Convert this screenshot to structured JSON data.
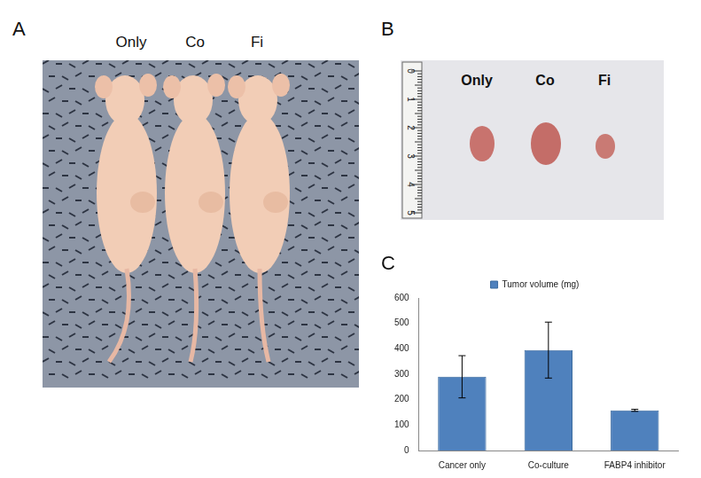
{
  "panels": [
    {
      "label": "A",
      "captions": [
        "Only",
        "Co",
        "Fi"
      ]
    },
    {
      "label": "B",
      "captions": [
        "Only",
        "Co",
        "Fi"
      ],
      "ruler": [
        0,
        1,
        2,
        3,
        4,
        5
      ]
    },
    {
      "label": "C"
    }
  ],
  "chart_data": {
    "type": "bar",
    "categories": [
      "Cancer only",
      "Co-culture",
      "FABP4 inhibitor"
    ],
    "series": [
      {
        "name": "Tumor volume (mg)",
        "color": "#4f81bd",
        "values": [
          290,
          395,
          158
        ],
        "errors": [
          83,
          110,
          4
        ]
      }
    ],
    "ylim": [
      0,
      600
    ],
    "yticks": [
      0,
      100,
      200,
      300,
      400,
      500,
      600
    ],
    "grid": false,
    "legend": "top"
  }
}
